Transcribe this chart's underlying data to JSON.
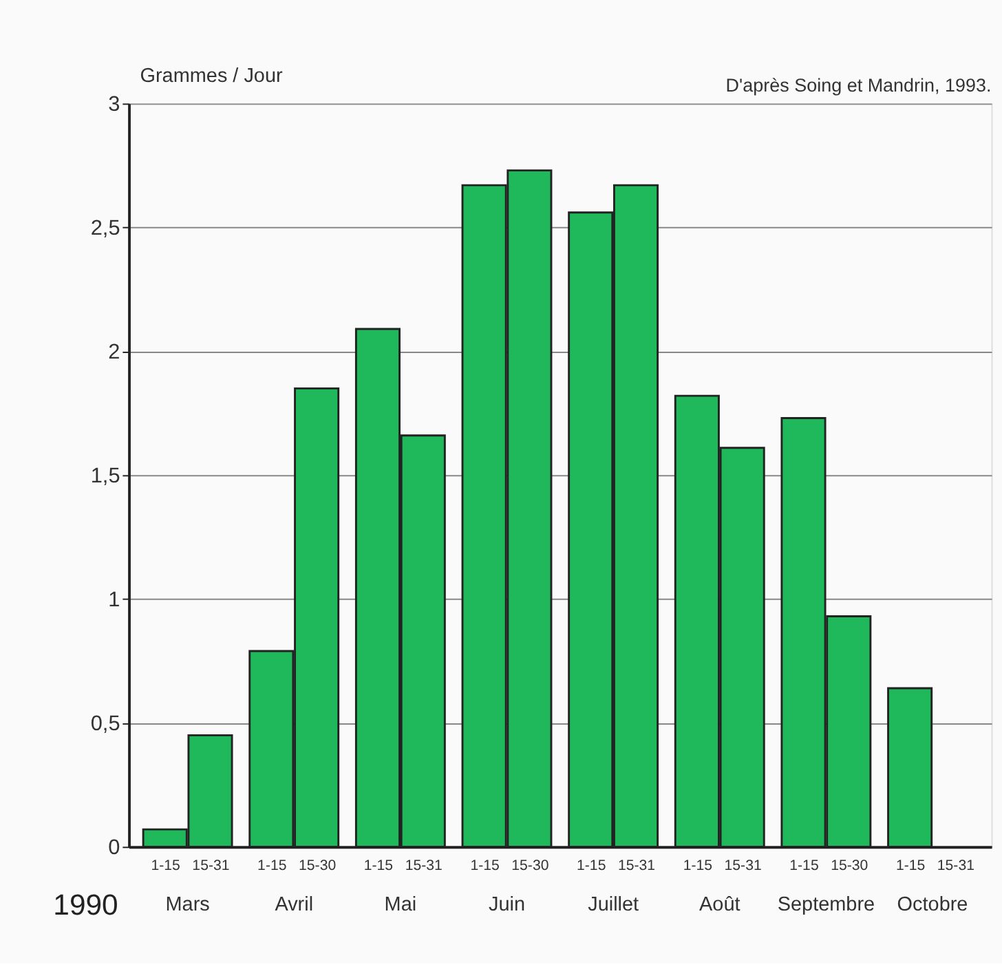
{
  "chart_data": {
    "type": "bar",
    "ylabel": "Grammes / Jour",
    "categories": [
      "1-15",
      "15-31",
      "1-15",
      "15-30",
      "1-15",
      "15-31",
      "1-15",
      "15-30",
      "1-15",
      "15-31",
      "1-15",
      "15-31",
      "1-15",
      "15-30",
      "1-15",
      "15-31"
    ],
    "series": [
      {
        "color": "#1fb85a",
        "values": [
          0.07,
          0.45,
          0.79,
          1.85,
          2.09,
          1.66,
          2.67,
          2.73,
          2.56,
          2.67,
          1.82,
          1.61,
          1.73,
          0.93,
          0.64,
          null
        ]
      }
    ],
    "ylim": [
      0,
      3
    ],
    "yticks": [
      0,
      {
        "value": 0.5,
        "label": "0,5"
      },
      1,
      {
        "value": 1.5,
        "label": "1,5"
      },
      2,
      {
        "value": 2.5,
        "label": "2,5"
      },
      3
    ],
    "grid": "y",
    "annotations": [
      "D'après Soing et Mandrin, 1993.",
      "1990",
      "Mars",
      "Avril",
      "Mai",
      "Juin",
      "Juillet",
      "Août",
      "Septembre",
      "Octobre"
    ]
  }
}
